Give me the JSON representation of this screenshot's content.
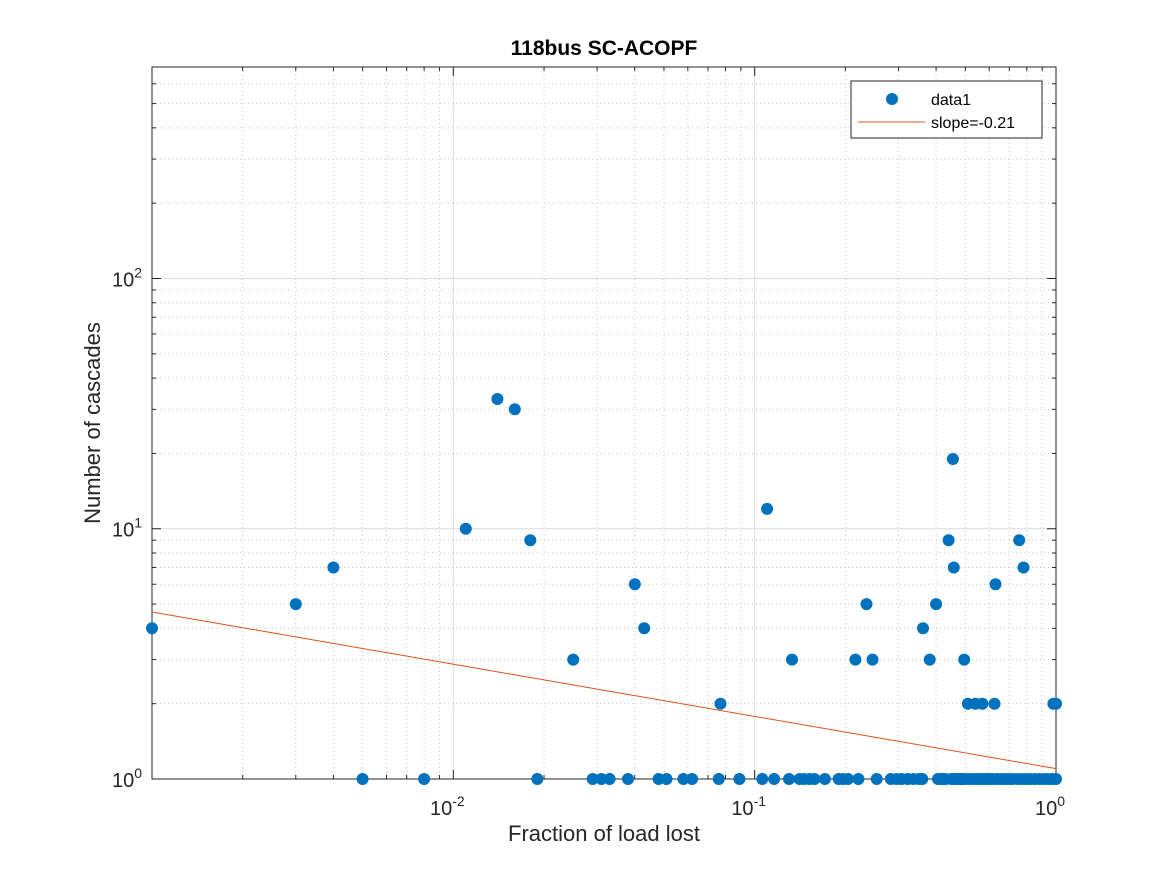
{
  "chart_data": {
    "type": "scatter",
    "title": "118bus SC-ACOPF",
    "xlabel": "Fraction of load lost",
    "ylabel": "Number of cascades",
    "xscale": "log",
    "yscale": "log",
    "xlim": [
      0.001,
      1
    ],
    "ylim": [
      1,
      700
    ],
    "grid": true,
    "minor_grid": true,
    "legend_position": "top-right",
    "x_ticks": [
      {
        "value": 0.01,
        "base": "10",
        "exp": "-2"
      },
      {
        "value": 0.1,
        "base": "10",
        "exp": "-1"
      },
      {
        "value": 1,
        "base": "10",
        "exp": "0"
      }
    ],
    "y_ticks": [
      {
        "value": 1,
        "base": "10",
        "exp": "0"
      },
      {
        "value": 10,
        "base": "10",
        "exp": "1"
      },
      {
        "value": 100,
        "base": "10",
        "exp": "2"
      }
    ],
    "series": [
      {
        "name": "data1",
        "kind": "markers",
        "color": "#0072BD",
        "points": [
          [
            0.001,
            4
          ],
          [
            0.003,
            5
          ],
          [
            0.004,
            7
          ],
          [
            0.011,
            10
          ],
          [
            0.014,
            33
          ],
          [
            0.016,
            30
          ],
          [
            0.018,
            9
          ],
          [
            0.025,
            3
          ],
          [
            0.04,
            6
          ],
          [
            0.043,
            4
          ],
          [
            0.077,
            2
          ],
          [
            0.11,
            12
          ],
          [
            0.133,
            3
          ],
          [
            0.216,
            3
          ],
          [
            0.235,
            5
          ],
          [
            0.246,
            3
          ],
          [
            0.362,
            4
          ],
          [
            0.381,
            3
          ],
          [
            0.4,
            5
          ],
          [
            0.44,
            9
          ],
          [
            0.455,
            19
          ],
          [
            0.458,
            7
          ],
          [
            0.496,
            3
          ],
          [
            0.51,
            2
          ],
          [
            0.54,
            2
          ],
          [
            0.57,
            2
          ],
          [
            0.625,
            2
          ],
          [
            0.63,
            6
          ],
          [
            0.755,
            9
          ],
          [
            0.78,
            7
          ],
          [
            0.98,
            2
          ],
          [
            1.0,
            2
          ],
          [
            0.005,
            1
          ],
          [
            0.008,
            1
          ],
          [
            0.019,
            1
          ],
          [
            0.029,
            1
          ],
          [
            0.031,
            1
          ],
          [
            0.033,
            1
          ],
          [
            0.038,
            1
          ],
          [
            0.048,
            1
          ],
          [
            0.051,
            1
          ],
          [
            0.058,
            1
          ],
          [
            0.062,
            1
          ],
          [
            0.076,
            1
          ],
          [
            0.089,
            1
          ],
          [
            0.106,
            1
          ],
          [
            0.116,
            1
          ],
          [
            0.13,
            1
          ],
          [
            0.141,
            1
          ],
          [
            0.146,
            1
          ],
          [
            0.152,
            1
          ],
          [
            0.158,
            1
          ],
          [
            0.171,
            1
          ],
          [
            0.19,
            1
          ],
          [
            0.197,
            1
          ],
          [
            0.204,
            1
          ],
          [
            0.221,
            1
          ],
          [
            0.254,
            1
          ],
          [
            0.283,
            1
          ],
          [
            0.296,
            1
          ],
          [
            0.307,
            1
          ],
          [
            0.322,
            1
          ],
          [
            0.336,
            1
          ],
          [
            0.351,
            1
          ],
          [
            0.36,
            1
          ],
          [
            0.406,
            1
          ],
          [
            0.414,
            1
          ],
          [
            0.422,
            1
          ],
          [
            0.43,
            1
          ],
          [
            0.45,
            1
          ],
          [
            0.46,
            1
          ],
          [
            0.47,
            1
          ],
          [
            0.48,
            1
          ],
          [
            0.49,
            1
          ],
          [
            0.5,
            1
          ],
          [
            0.515,
            1
          ],
          [
            0.53,
            1
          ],
          [
            0.545,
            1
          ],
          [
            0.56,
            1
          ],
          [
            0.575,
            1
          ],
          [
            0.59,
            1
          ],
          [
            0.605,
            1
          ],
          [
            0.62,
            1
          ],
          [
            0.64,
            1
          ],
          [
            0.66,
            1
          ],
          [
            0.68,
            1
          ],
          [
            0.7,
            1
          ],
          [
            0.72,
            1
          ],
          [
            0.745,
            1
          ],
          [
            0.77,
            1
          ],
          [
            0.795,
            1
          ],
          [
            0.82,
            1
          ],
          [
            0.85,
            1
          ],
          [
            0.88,
            1
          ],
          [
            0.91,
            1
          ],
          [
            0.94,
            1
          ],
          [
            0.97,
            1
          ],
          [
            1.0,
            1
          ]
        ]
      },
      {
        "name": "slope=-0.21",
        "kind": "line",
        "color": "#D95319",
        "points": [
          [
            0.001,
            4.65
          ],
          [
            1,
            1.1
          ]
        ]
      }
    ]
  }
}
